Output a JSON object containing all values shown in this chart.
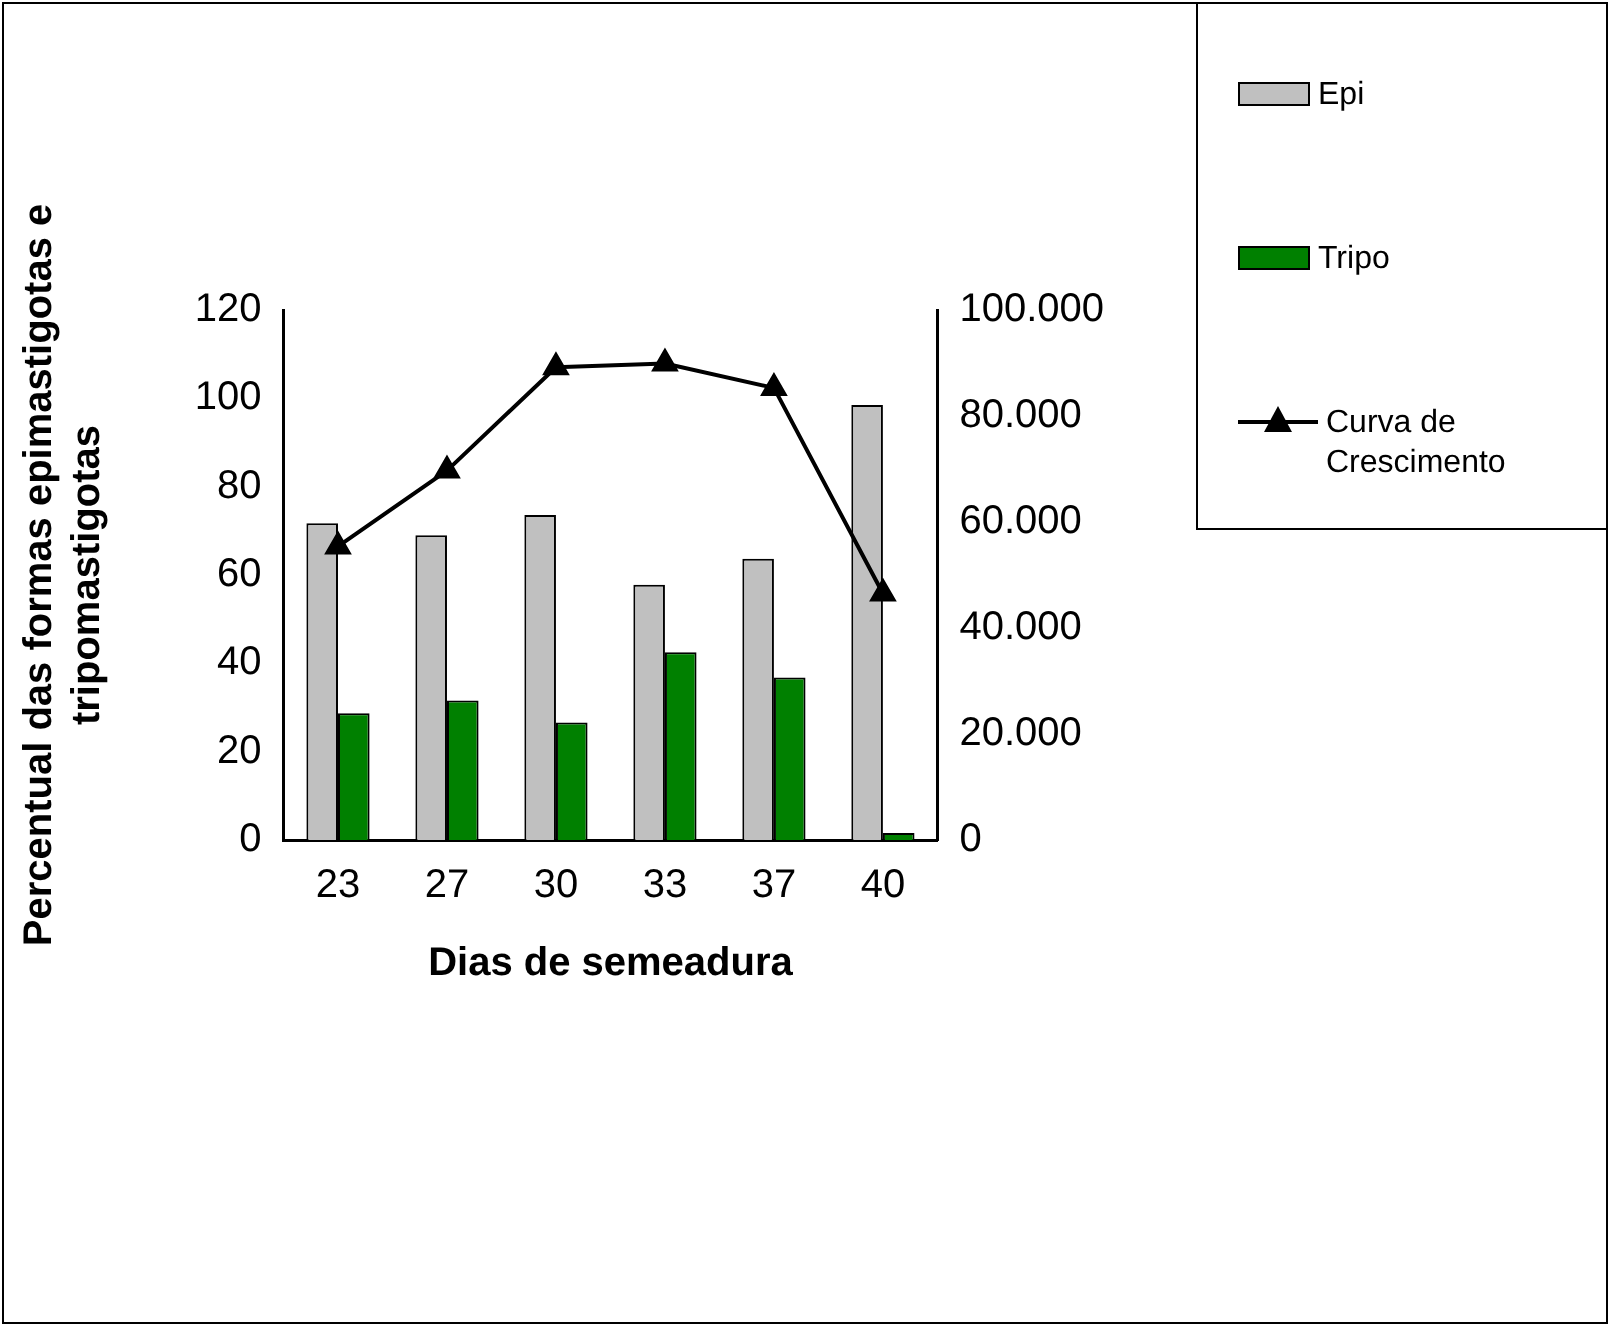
{
  "chart_data": {
    "type": "bar",
    "categories": [
      "23",
      "27",
      "30",
      "33",
      "37",
      "40"
    ],
    "xlabel": "Dias de semeadura",
    "ylabel": "Percentual das formas epimastigotas e tripomastigotas",
    "ylim": [
      0,
      120
    ],
    "yticks": [
      0,
      20,
      40,
      60,
      80,
      100,
      120
    ],
    "y2lim": [
      0,
      100000
    ],
    "y2ticks": [
      {
        "value": 0,
        "label": "0"
      },
      {
        "value": 20000,
        "label": "20.000"
      },
      {
        "value": 40000,
        "label": "40.000"
      },
      {
        "value": 60000,
        "label": "60.000"
      },
      {
        "value": 80000,
        "label": "80.000"
      },
      {
        "value": 100000,
        "label": "100.000"
      }
    ],
    "grid": false,
    "legend": "top right",
    "series": [
      {
        "name": "Epi",
        "color": "#c0c0c0",
        "values": [
          71.7,
          69.0,
          73.6,
          57.8,
          63.7,
          98.5
        ]
      },
      {
        "name": "Tripo",
        "color": "#008000",
        "values": [
          28.7,
          31.6,
          26.6,
          42.5,
          36.8,
          1.6
        ]
      },
      {
        "name": "Curva de Crescimento",
        "type": "line",
        "axis": "y2",
        "color": "#000000",
        "marker": "triangle",
        "line_style": "solid",
        "values": [
          55400,
          69700,
          89200,
          89900,
          85300,
          46500
        ]
      }
    ]
  }
}
